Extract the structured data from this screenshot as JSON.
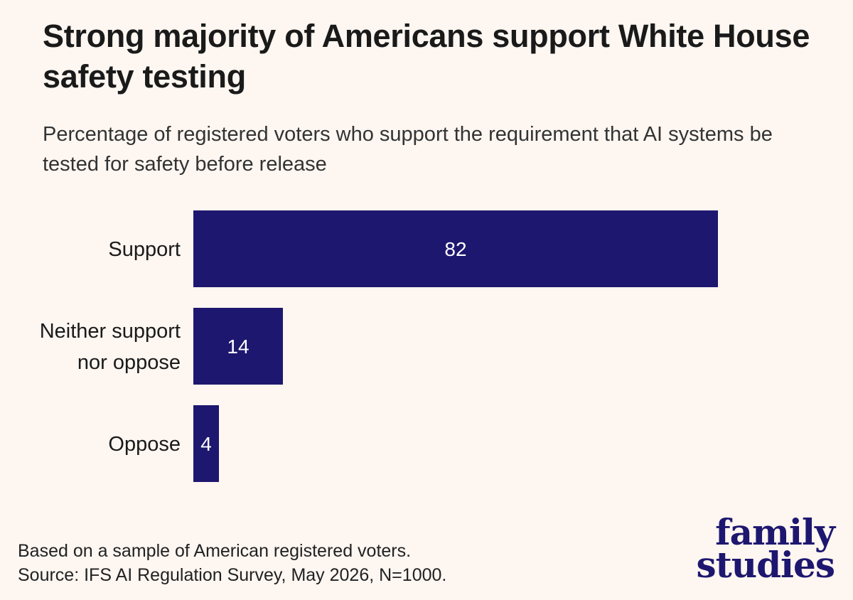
{
  "title": "Strong majority of Americans support White House safety testing",
  "subtitle": "Percentage of registered voters who support the requirement that AI systems be tested for safety before release",
  "footnote": {
    "line1": "Based on a sample of American registered voters.",
    "line2": "Source: IFS AI Regulation Survey, May 2026, N=1000."
  },
  "logo": {
    "line1": "family",
    "line2": "studies"
  },
  "chart_data": {
    "type": "bar",
    "orientation": "horizontal",
    "categories": [
      [
        "Support"
      ],
      [
        "Neither support",
        "nor oppose"
      ],
      [
        "Oppose"
      ]
    ],
    "values": [
      82,
      14,
      4
    ],
    "xlim": [
      0,
      100
    ],
    "bar_color": "#1e176f",
    "label_color": "#ffffff",
    "grid": false,
    "legend": "none"
  }
}
